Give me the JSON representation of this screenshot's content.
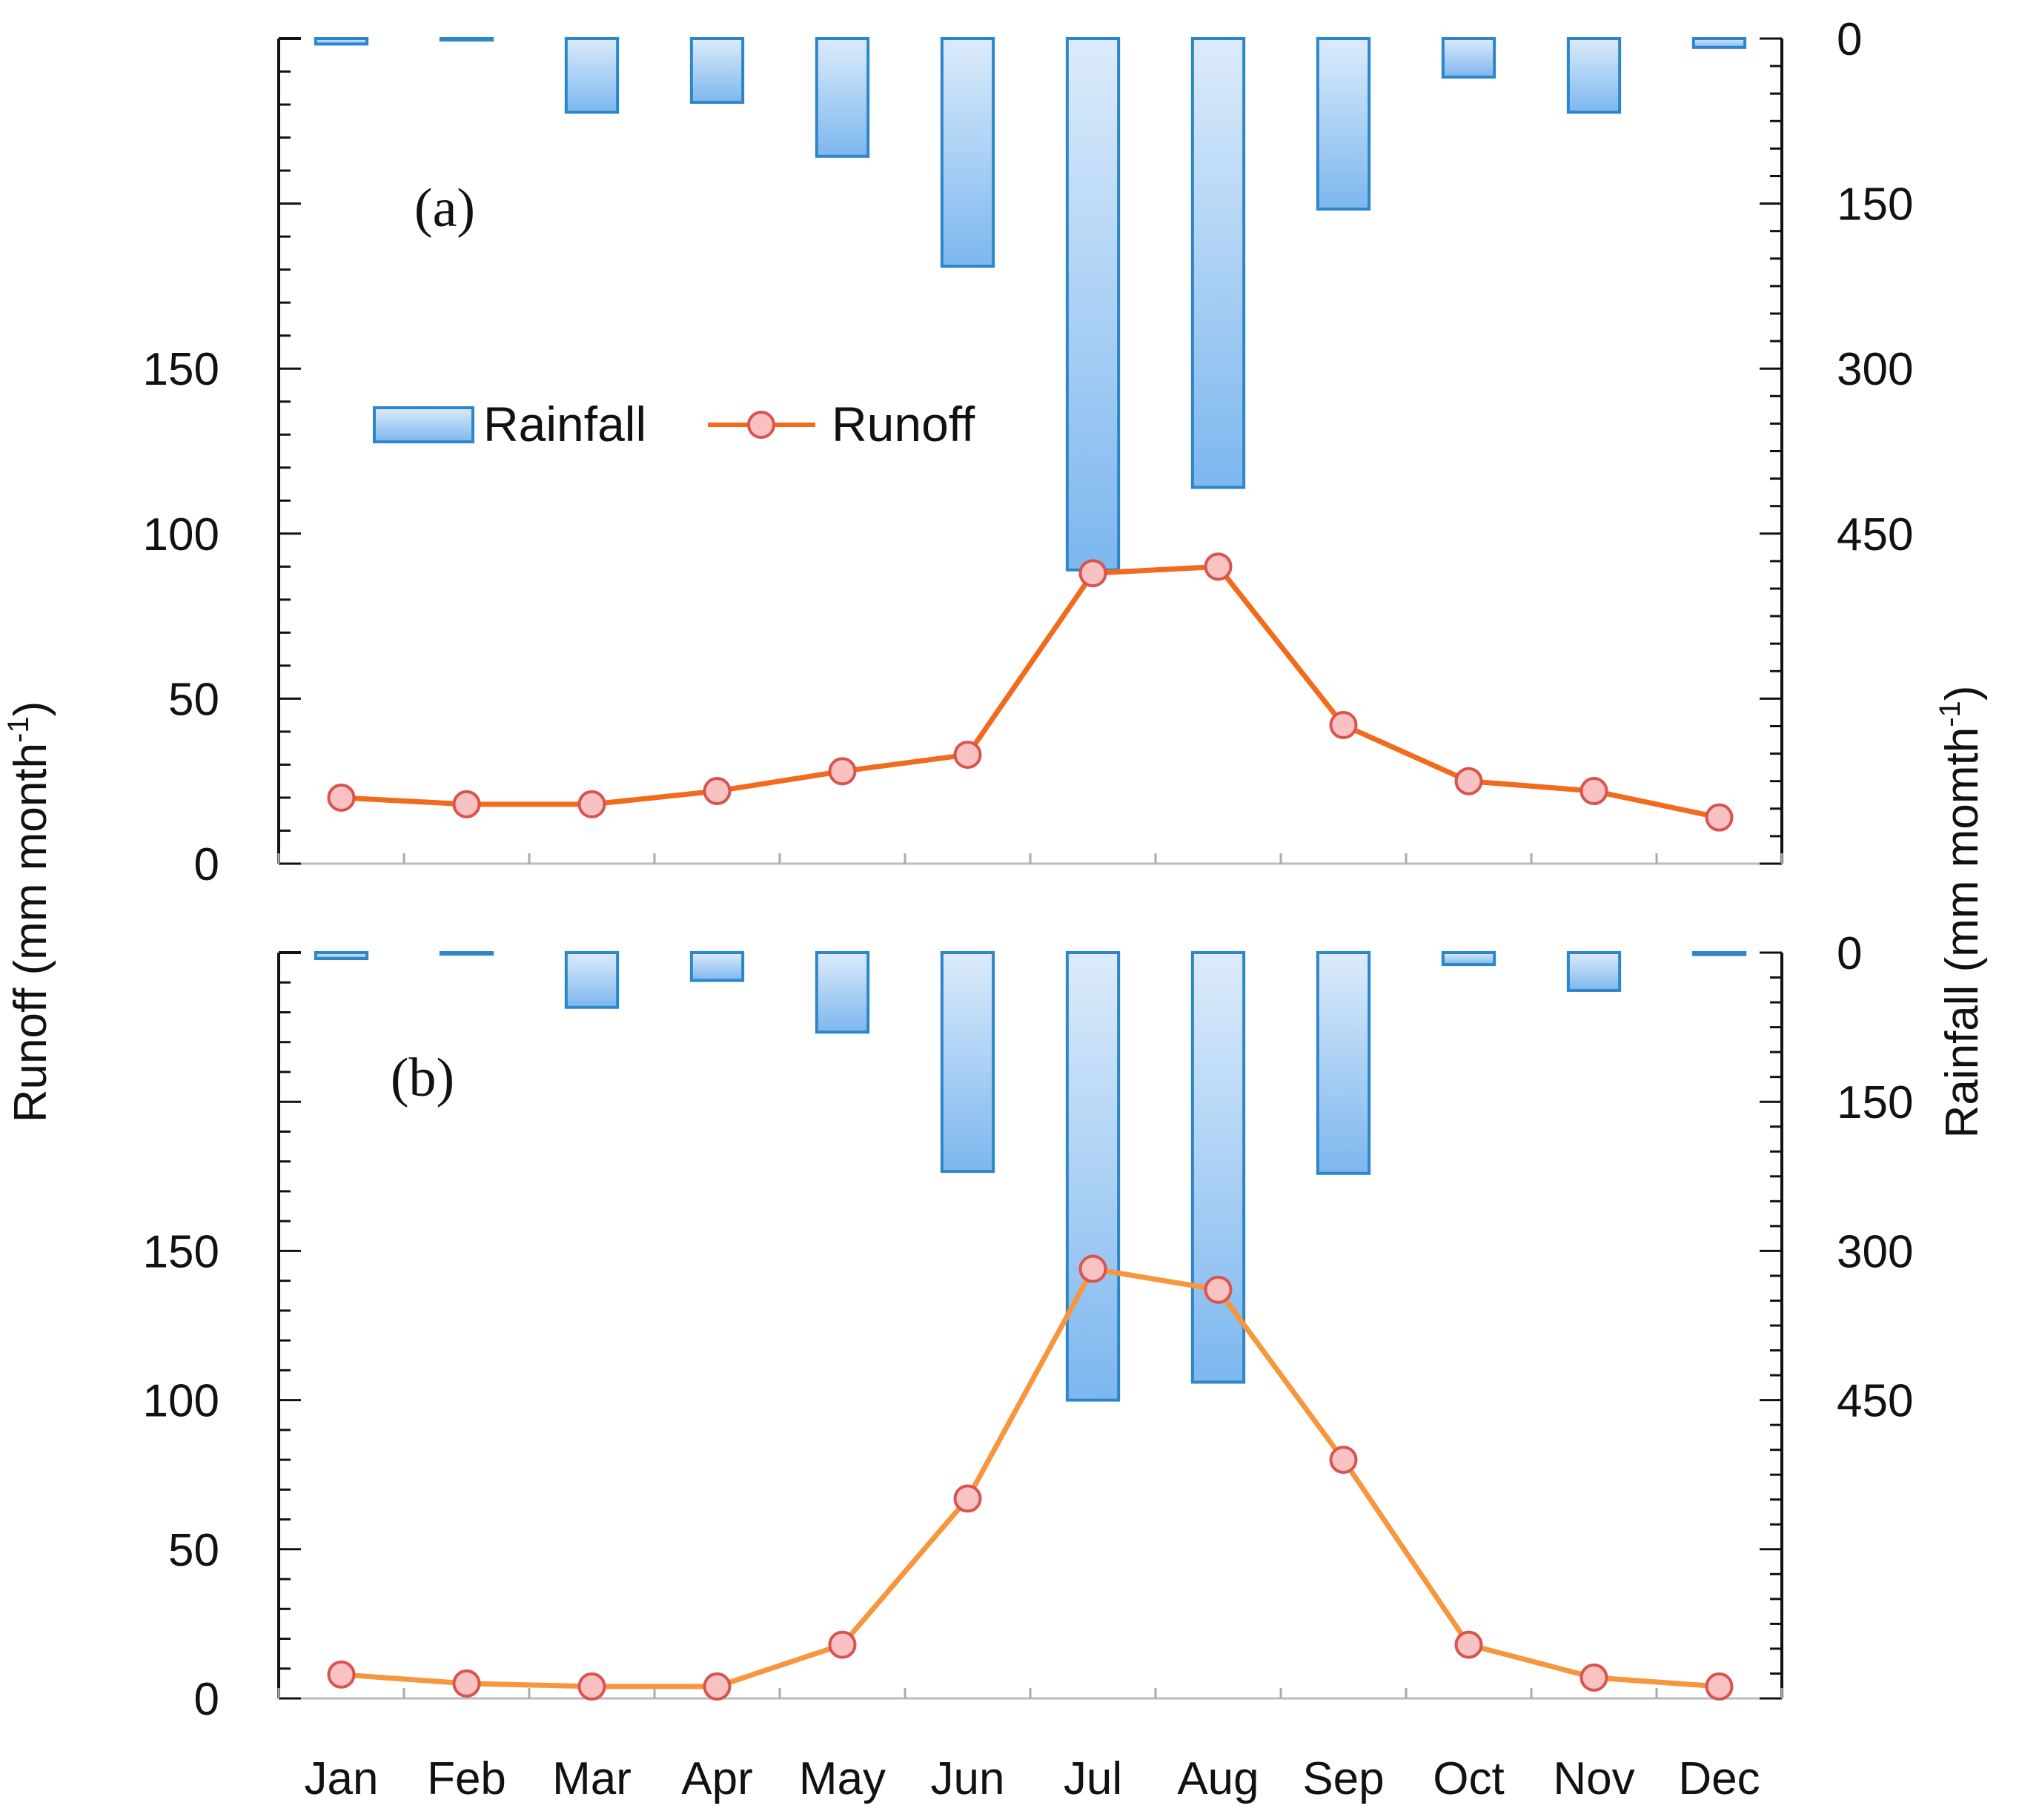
{
  "colors": {
    "bar_stroke": "#2E86C9",
    "bar_fill_top": "#DCEBFB",
    "bar_fill_bottom": "#7CB7EE",
    "runoff_line_a": "#F26B1D",
    "runoff_line_b": "#F7963D",
    "marker_fill": "#F9C2C2",
    "marker_stroke": "#D9534F",
    "axis": "#111111"
  },
  "axes": {
    "left_title": "Runoff (mm month",
    "left_title_sup": "-1",
    "left_title_close": ")",
    "right_title": "Rainfall (mm momth",
    "right_title_sup": "-1",
    "right_title_close": ")"
  },
  "legend": {
    "rainfall": "Rainfall",
    "runoff": "Runoff"
  },
  "chart_data": [
    {
      "type": "bar+line",
      "panel_label": "(a)",
      "categories": [
        "Jan",
        "Feb",
        "Mar",
        "Apr",
        "May",
        "Jun",
        "Jul",
        "Aug",
        "Sep",
        "Oct",
        "Nov",
        "Dec"
      ],
      "runoff": {
        "name": "Runoff",
        "values": [
          20,
          18,
          18,
          22,
          28,
          33,
          88,
          90,
          42,
          25,
          22,
          14
        ],
        "ylim": [
          0,
          250
        ],
        "ticks": [
          0,
          50,
          100,
          150
        ]
      },
      "rainfall": {
        "name": "Rainfall",
        "values": [
          5,
          1,
          67,
          58,
          107,
          207,
          483,
          408,
          155,
          35,
          67,
          8
        ],
        "ylim": [
          750,
          0
        ],
        "ticks": [
          0,
          150,
          300,
          450
        ]
      }
    },
    {
      "type": "bar+line",
      "panel_label": "(b)",
      "categories": [
        "Jan",
        "Feb",
        "Mar",
        "Apr",
        "May",
        "Jun",
        "Jul",
        "Aug",
        "Sep",
        "Oct",
        "Nov",
        "Dec"
      ],
      "runoff": {
        "name": "Runoff",
        "values": [
          8,
          5,
          4,
          4,
          18,
          67,
          144,
          137,
          80,
          18,
          7,
          4
        ],
        "ylim": [
          0,
          250
        ],
        "ticks": [
          0,
          50,
          100,
          150
        ]
      },
      "rainfall": {
        "name": "Rainfall",
        "values": [
          6,
          1,
          55,
          28,
          80,
          220,
          450,
          432,
          222,
          12,
          38,
          2
        ],
        "ylim": [
          750,
          0
        ],
        "ticks": [
          0,
          150,
          300,
          450
        ]
      }
    }
  ]
}
